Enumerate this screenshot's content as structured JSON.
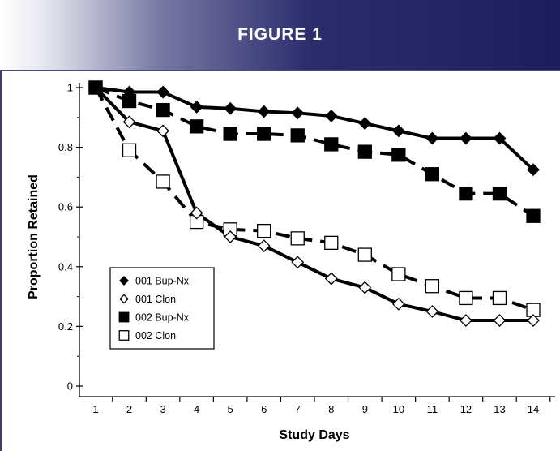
{
  "header": {
    "title": "FIGURE 1"
  },
  "chart_data": {
    "type": "line",
    "xlabel": "Study Days",
    "ylabel": "Proportion Retained",
    "x": [
      1,
      2,
      3,
      4,
      5,
      6,
      7,
      8,
      9,
      10,
      11,
      12,
      13,
      14
    ],
    "xlim": [
      1,
      14
    ],
    "ylim": [
      0,
      1
    ],
    "yticks": [
      0,
      0.2,
      0.4,
      0.6,
      0.8,
      1
    ],
    "ytick_labels": [
      "0",
      "0.2",
      "0.4",
      "0.6",
      "0.8",
      "1"
    ],
    "grid": false,
    "legend_position": "lower-left",
    "series": [
      {
        "name": "001 Bup-Nx",
        "marker": "diamond",
        "fill": "filled",
        "line": "solid",
        "values": [
          1.0,
          0.985,
          0.985,
          0.935,
          0.93,
          0.92,
          0.915,
          0.905,
          0.88,
          0.855,
          0.83,
          0.83,
          0.83,
          0.725
        ]
      },
      {
        "name": "001 Clon",
        "marker": "diamond",
        "fill": "open",
        "line": "solid",
        "values": [
          1.0,
          0.885,
          0.855,
          0.58,
          0.5,
          0.47,
          0.415,
          0.36,
          0.33,
          0.275,
          0.25,
          0.22,
          0.22,
          0.22
        ]
      },
      {
        "name": "002 Bup-Nx",
        "marker": "square",
        "fill": "filled",
        "line": "dashed",
        "values": [
          1.0,
          0.955,
          0.925,
          0.87,
          0.845,
          0.845,
          0.84,
          0.81,
          0.785,
          0.775,
          0.71,
          0.645,
          0.645,
          0.57
        ]
      },
      {
        "name": "002 Clon",
        "marker": "square",
        "fill": "open",
        "line": "dashed",
        "values": [
          1.0,
          0.79,
          0.685,
          0.55,
          0.525,
          0.52,
          0.495,
          0.48,
          0.44,
          0.375,
          0.335,
          0.295,
          0.295,
          0.255
        ]
      }
    ]
  }
}
